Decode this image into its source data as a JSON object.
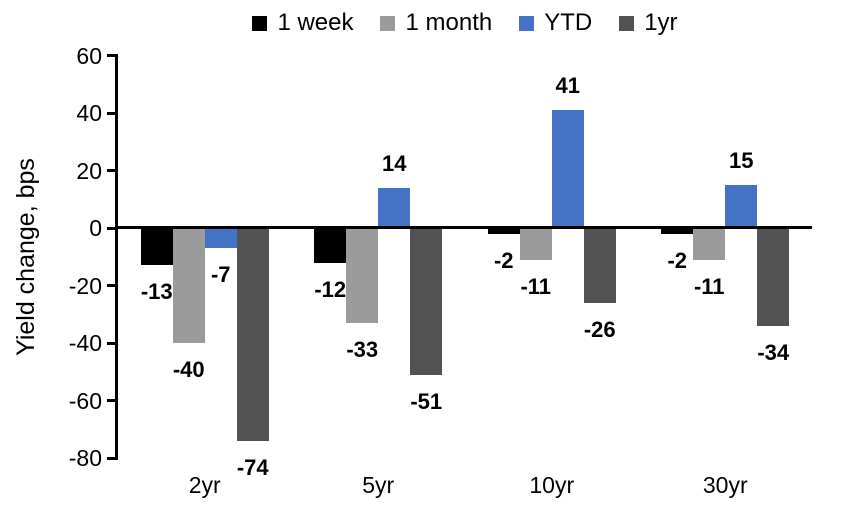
{
  "chart_data": {
    "type": "bar",
    "title": "",
    "ylabel": "Yield change, bps",
    "xlabel": "",
    "categories": [
      "2yr",
      "5yr",
      "10yr",
      "30yr"
    ],
    "series": [
      {
        "name": "1 week",
        "color": "#000000",
        "values": [
          -13,
          -12,
          -2,
          -2
        ]
      },
      {
        "name": "1 month",
        "color": "#9B9B9B",
        "values": [
          -40,
          -33,
          -11,
          -11
        ]
      },
      {
        "name": "YTD",
        "color": "#4472C4",
        "values": [
          -7,
          14,
          41,
          15
        ]
      },
      {
        "name": "1yr",
        "color": "#525252",
        "values": [
          -74,
          -51,
          -26,
          -34
        ]
      }
    ],
    "ylim": [
      -80,
      60
    ],
    "yticks": [
      60,
      40,
      20,
      0,
      -20,
      -40,
      -60,
      -80
    ],
    "grid": false,
    "data_labels": true,
    "legend_position": "top"
  }
}
